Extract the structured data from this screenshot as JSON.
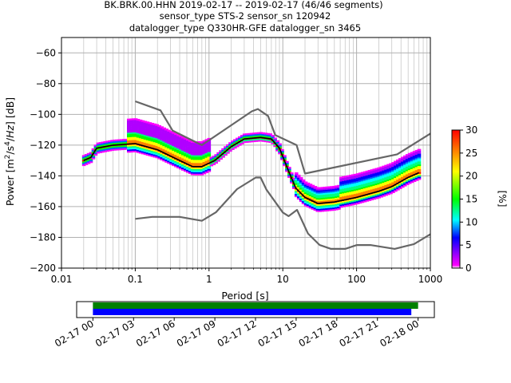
{
  "title_lines": [
    "BK.BRK.00.HHN   2019-02-17 -- 2019-02-17  (46/46 segments)",
    "sensor_type STS-2 sensor_sn 120942",
    "datalogger_type Q330HR-GFE datalogger_sn 3465"
  ],
  "chart_data": {
    "type": "heatmap",
    "title": "BK.BRK.00.HHN   2019-02-17 -- 2019-02-17  (46/46 segments)",
    "xlabel": "Period [s]",
    "ylabel": "Power [m²/s⁴/Hz] [dB]",
    "x_scale": "log",
    "xlim": [
      0.01,
      1000
    ],
    "ylim": [
      -200,
      -50
    ],
    "grid": true,
    "xtick_labels": [
      "0.01",
      "0.1",
      "1",
      "10",
      "100",
      "1000"
    ],
    "xtick_values": [
      0.01,
      0.1,
      1,
      10,
      100,
      1000
    ],
    "ytick_labels": [
      "−200",
      "−180",
      "−160",
      "−140",
      "−120",
      "−100",
      "−80",
      "−60"
    ],
    "ytick_values": [
      -200,
      -180,
      -160,
      -140,
      -120,
      -100,
      -80,
      -60
    ],
    "colorbar": {
      "label": "[%]",
      "range": [
        0,
        30
      ],
      "tick_labels": [
        "0",
        "5",
        "10",
        "15",
        "20",
        "25",
        "30"
      ],
      "tick_values": [
        0,
        5,
        10,
        15,
        20,
        25,
        30
      ]
    },
    "mode_line": {
      "x": [
        0.02,
        0.025,
        0.03,
        0.05,
        0.1,
        0.2,
        0.4,
        0.6,
        0.8,
        1.2,
        2,
        3,
        5,
        7,
        9,
        12,
        15,
        20,
        30,
        50,
        100,
        200,
        300,
        500,
        700
      ],
      "y": [
        -130,
        -128,
        -122,
        -120,
        -119,
        -123,
        -130,
        -134,
        -134,
        -130,
        -121,
        -116,
        -115,
        -116,
        -122,
        -137,
        -148,
        -154,
        -158,
        -157,
        -154,
        -150,
        -147,
        -141,
        -138
      ]
    },
    "nhnm": {
      "x": [
        0.1,
        0.22,
        0.32,
        0.8,
        3.8,
        4.6,
        6.3,
        7.9,
        15.4,
        20,
        354.8,
        1000
      ],
      "y": [
        -91.5,
        -97.4,
        -110.5,
        -120,
        -98,
        -96.5,
        -101,
        -113.5,
        -120,
        -138.5,
        -126,
        -112.5
      ]
    },
    "nlnm": {
      "x": [
        0.1,
        0.17,
        0.4,
        0.8,
        1.24,
        2.4,
        4.3,
        5,
        6,
        10,
        12,
        15.6,
        21.9,
        31.6,
        45,
        70,
        101,
        154,
        328,
        600,
        1000
      ],
      "y": [
        -168,
        -166.7,
        -166.7,
        -169.2,
        -163.7,
        -148.6,
        -141.1,
        -141.1,
        -149,
        -163.8,
        -166.2,
        -162.1,
        -177.5,
        -185,
        -187.5,
        -187.5,
        -185,
        -185,
        -187.5,
        -184.4,
        -178
      ]
    },
    "coverage": {
      "tick_labels": [
        "02-17 00",
        "02-17 03",
        "02-17 06",
        "02-17 09",
        "02-17 12",
        "02-17 15",
        "02-17 18",
        "02-17 21",
        "02-18 00"
      ],
      "tick_hours": [
        0,
        3,
        6,
        9,
        12,
        15,
        18,
        21,
        24
      ],
      "range_hours": [
        -1.2,
        25.2
      ],
      "bars": [
        {
          "start": 0,
          "end": 24.0,
          "color": "#008000"
        },
        {
          "start": 0,
          "end": 23.5,
          "color": "#0000ff"
        }
      ]
    }
  }
}
